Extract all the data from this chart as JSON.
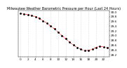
{
  "title": "Milwaukee Weather Barometric Pressure per Hour (Last 24 Hours)",
  "hours": [
    0,
    1,
    2,
    3,
    4,
    5,
    6,
    7,
    8,
    9,
    10,
    11,
    12,
    13,
    14,
    15,
    16,
    17,
    18,
    19,
    20,
    21,
    22,
    23
  ],
  "pressure": [
    29.92,
    29.9,
    29.88,
    29.84,
    29.79,
    29.72,
    29.62,
    29.52,
    29.4,
    29.28,
    29.14,
    29.0,
    28.86,
    28.72,
    28.6,
    28.5,
    28.42,
    28.36,
    28.38,
    28.42,
    28.5,
    28.55,
    28.52,
    28.48
  ],
  "line_color": "#ff0000",
  "marker_color": "#000000",
  "bg_color": "#ffffff",
  "title_fontsize": 3.5,
  "tick_fontsize": 3,
  "ylim_min": 28.1,
  "ylim_max": 30.05,
  "grid_color": "#bbbbbb",
  "xtick_step": 2,
  "ytick_start": 28.2,
  "ytick_end": 30.0,
  "ytick_step": 0.2
}
